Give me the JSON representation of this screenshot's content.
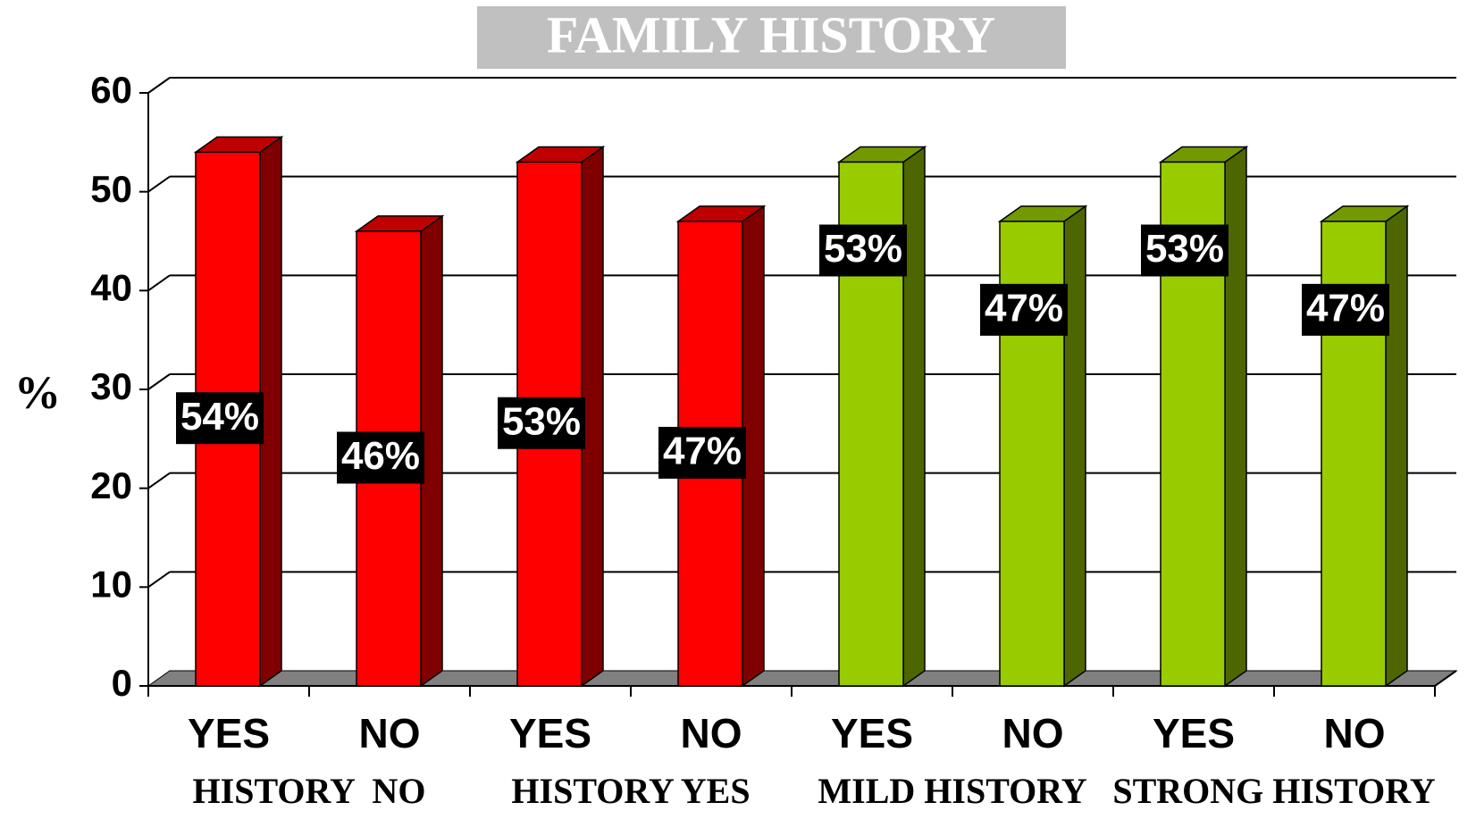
{
  "chart_data": {
    "type": "bar3d",
    "title": "FAMILY HISTORY",
    "y_label": "%",
    "categories": [
      "YES",
      "NO",
      "YES",
      "NO",
      "YES",
      "NO",
      "YES",
      "NO"
    ],
    "values": [
      54,
      46,
      53,
      47,
      53,
      47,
      53,
      47
    ],
    "value_labels": [
      "54%",
      "46%",
      "53%",
      "47%",
      "53%",
      "47%",
      "53%",
      "47%"
    ],
    "colors": [
      "#ff0000",
      "#ff0000",
      "#ff0000",
      "#ff0000",
      "#99cc00",
      "#99cc00",
      "#99cc00",
      "#99cc00"
    ],
    "group_labels": [
      "HISTORY  NO",
      "HISTORY YES",
      "MILD HISTORY",
      "STRONG HISTORY"
    ],
    "ylim": [
      0,
      60
    ],
    "yticks": [
      0,
      10,
      20,
      30,
      40,
      50,
      60
    ],
    "grid": true
  }
}
